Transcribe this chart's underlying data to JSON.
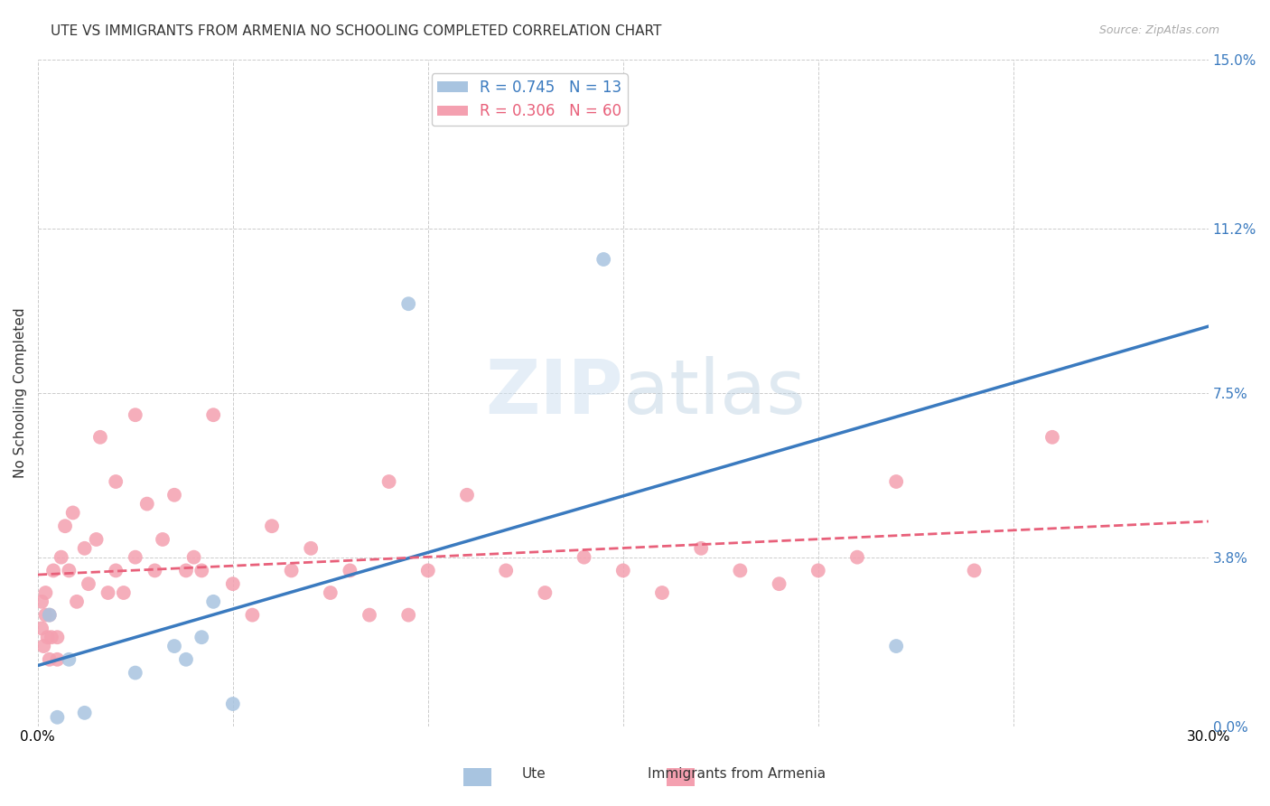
{
  "title": "UTE VS IMMIGRANTS FROM ARMENIA NO SCHOOLING COMPLETED CORRELATION CHART",
  "source": "Source: ZipAtlas.com",
  "ylabel": "No Schooling Completed",
  "ytick_labels": [
    "0.0%",
    "3.8%",
    "7.5%",
    "11.2%",
    "15.0%"
  ],
  "ytick_values": [
    0.0,
    3.8,
    7.5,
    11.2,
    15.0
  ],
  "xlim": [
    0.0,
    30.0
  ],
  "ylim": [
    0.0,
    15.0
  ],
  "ute_R": 0.745,
  "ute_N": 13,
  "armenia_R": 0.306,
  "armenia_N": 60,
  "legend_label_ute": "Ute",
  "legend_label_armenia": "Immigrants from Armenia",
  "ute_color": "#a8c4e0",
  "armenia_color": "#f4a0b0",
  "ute_line_color": "#3a7abf",
  "armenia_line_color": "#e8607a",
  "background_color": "#ffffff",
  "watermark_zip": "ZIP",
  "watermark_atlas": "atlas",
  "ute_points_x": [
    0.3,
    0.5,
    1.2,
    0.8,
    2.5,
    3.5,
    3.8,
    4.2,
    4.5,
    5.0,
    9.5,
    14.5,
    22.0
  ],
  "ute_points_y": [
    2.5,
    0.2,
    0.3,
    1.5,
    1.2,
    1.8,
    1.5,
    2.0,
    2.8,
    0.5,
    9.5,
    10.5,
    1.8
  ],
  "armenia_points_x": [
    0.1,
    0.1,
    0.15,
    0.2,
    0.2,
    0.25,
    0.3,
    0.3,
    0.35,
    0.4,
    0.5,
    0.5,
    0.6,
    0.7,
    0.8,
    0.9,
    1.0,
    1.2,
    1.3,
    1.5,
    1.6,
    1.8,
    2.0,
    2.0,
    2.2,
    2.5,
    2.5,
    2.8,
    3.0,
    3.2,
    3.5,
    3.8,
    4.0,
    4.2,
    4.5,
    5.0,
    5.5,
    6.0,
    6.5,
    7.0,
    7.5,
    8.0,
    8.5,
    9.0,
    9.5,
    10.0,
    11.0,
    12.0,
    13.0,
    14.0,
    15.0,
    16.0,
    17.0,
    18.0,
    19.0,
    20.0,
    21.0,
    22.0,
    24.0,
    26.0
  ],
  "armenia_points_y": [
    2.2,
    2.8,
    1.8,
    3.0,
    2.5,
    2.0,
    2.5,
    1.5,
    2.0,
    3.5,
    2.0,
    1.5,
    3.8,
    4.5,
    3.5,
    4.8,
    2.8,
    4.0,
    3.2,
    4.2,
    6.5,
    3.0,
    5.5,
    3.5,
    3.0,
    3.8,
    7.0,
    5.0,
    3.5,
    4.2,
    5.2,
    3.5,
    3.8,
    3.5,
    7.0,
    3.2,
    2.5,
    4.5,
    3.5,
    4.0,
    3.0,
    3.5,
    2.5,
    5.5,
    2.5,
    3.5,
    5.2,
    3.5,
    3.0,
    3.8,
    3.5,
    3.0,
    4.0,
    3.5,
    3.2,
    3.5,
    3.8,
    5.5,
    3.5,
    6.5
  ]
}
